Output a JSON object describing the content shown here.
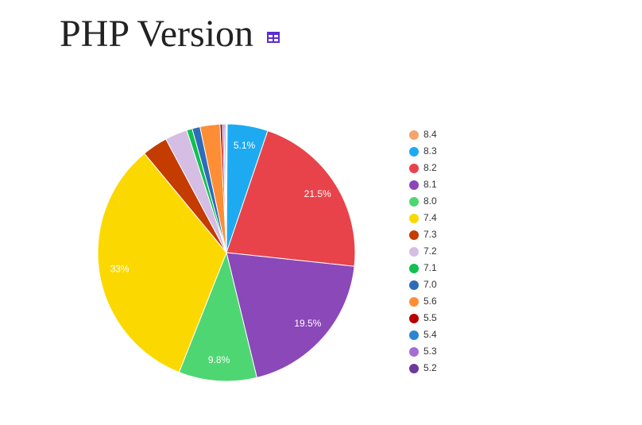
{
  "chart_data": {
    "type": "pie",
    "title": "PHP Version",
    "categories": [
      "8.4",
      "8.3",
      "8.2",
      "8.1",
      "8.0",
      "7.4",
      "7.3",
      "7.2",
      "7.1",
      "7.0",
      "5.6",
      "5.5",
      "5.4",
      "5.3",
      "5.2"
    ],
    "values": [
      0.1,
      5.1,
      21.5,
      19.5,
      9.8,
      33,
      3.2,
      2.8,
      0.7,
      1.0,
      2.5,
      0.3,
      0.2,
      0.2,
      0.1
    ],
    "value_labels": [
      null,
      "5.1%",
      "21.5%",
      "19.5%",
      "9.8%",
      "33%",
      null,
      null,
      null,
      null,
      null,
      null,
      null,
      null,
      null
    ],
    "colors": [
      "#f6a36c",
      "#1eaaf1",
      "#e8434b",
      "#8a48b8",
      "#4ed672",
      "#fbd900",
      "#c43c00",
      "#d5bde4",
      "#12c052",
      "#2d6cb9",
      "#fd8e36",
      "#b80000",
      "#2c86cf",
      "#a66dd0",
      "#6d3a98"
    ]
  }
}
